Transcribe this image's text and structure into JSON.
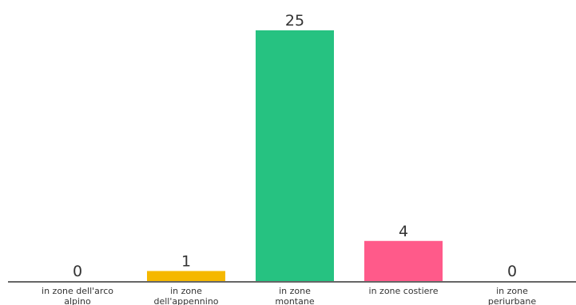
{
  "chart_data": {
    "type": "bar",
    "categories": [
      [
        "in zone dell'arco",
        "alpino"
      ],
      [
        "in zone",
        "dell'appennino"
      ],
      [
        "in zone",
        "montane"
      ],
      [
        "in zone costiere"
      ],
      [
        "in zone",
        "periurbane"
      ]
    ],
    "values": [
      0,
      1,
      25,
      4,
      0
    ],
    "value_labels": [
      "0",
      "1",
      "25",
      "4",
      "0"
    ],
    "colors": [
      "#9e9e9e",
      "#f5b800",
      "#26c281",
      "#ff5a8a",
      "#9e9e9e"
    ],
    "ylim": [
      0,
      25
    ],
    "grid": false,
    "axis_color": "#333333"
  }
}
